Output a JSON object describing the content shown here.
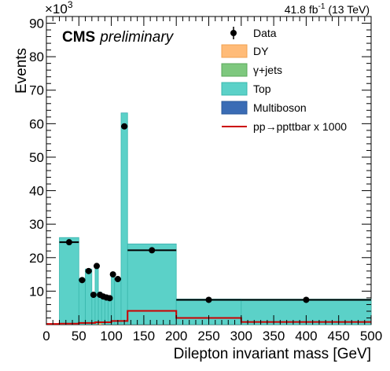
{
  "chart_data": {
    "type": "bar",
    "stacked": true,
    "xlabel": "Dilepton invariant mass [GeV]",
    "ylabel": "Events",
    "y_exponent_label": "×10",
    "y_exponent_power": "3",
    "lumi_value": "41.8 fb",
    "lumi_power": "-1",
    "lumi_energy": " (13 TeV)",
    "cms_label": "CMS",
    "preliminary_label": "preliminary",
    "xlim": [
      0,
      500
    ],
    "ylim": [
      0,
      92
    ],
    "x_ticks": [
      "0",
      "50",
      "100",
      "150",
      "200",
      "250",
      "300",
      "350",
      "400",
      "450",
      "500"
    ],
    "y_ticks": [
      "10",
      "20",
      "30",
      "40",
      "50",
      "60",
      "70",
      "80",
      "90"
    ],
    "bin_edges": [
      20,
      50,
      60,
      70,
      75,
      80,
      85,
      90,
      95,
      100,
      105,
      115,
      125,
      200,
      300,
      500
    ],
    "series": [
      {
        "name": "DY",
        "color": "#ffbb78",
        "values": [
          0.05,
          0.05,
          0.05,
          0.05,
          0.1,
          0.3,
          0.1,
          0.05,
          0.05,
          0.05,
          0.05,
          0.05,
          0.05,
          0.02,
          0.01
        ]
      },
      {
        "name": "γ+jets",
        "color": "#7ec87e",
        "values": [
          0.05,
          0.05,
          0.05,
          0.05,
          0.1,
          0.3,
          0.1,
          0.05,
          0.05,
          0.05,
          0.05,
          0.05,
          0.05,
          0.02,
          0.01
        ]
      },
      {
        "name": "Top",
        "color": "#5bd1c8",
        "values": [
          25.9,
          13.7,
          16.5,
          9.0,
          17.8,
          9.1,
          8.6,
          8.2,
          8.0,
          15.2,
          13.8,
          63.1,
          24.0,
          7.6,
          7.6
        ]
      },
      {
        "name": "Multiboson",
        "color": "#3a6cb5",
        "values": [
          0.02,
          0.02,
          0.02,
          0.02,
          0.02,
          0.02,
          0.02,
          0.02,
          0.02,
          0.02,
          0.02,
          0.05,
          0.03,
          0.01,
          0.01
        ]
      }
    ],
    "data_points": {
      "name": "Data",
      "x": [
        35,
        55,
        65,
        72.5,
        77.5,
        82.5,
        87.5,
        92.5,
        97.5,
        102.5,
        110,
        120,
        162.5,
        250,
        400
      ],
      "y": [
        24.6,
        13.3,
        16.0,
        8.9,
        17.5,
        8.9,
        8.4,
        8.1,
        7.9,
        15.0,
        13.6,
        59.2,
        22.2,
        7.4,
        7.4
      ],
      "xerr": [
        15,
        5,
        5,
        2.5,
        2.5,
        2.5,
        2.5,
        2.5,
        2.5,
        2.5,
        5,
        5,
        37.5,
        50,
        100
      ]
    },
    "signal": {
      "name": "pp→ppttbar x 1000",
      "color": "#cc0000",
      "bin_edges": [
        0,
        20,
        50,
        75,
        100,
        125,
        150,
        200,
        300,
        500
      ],
      "values": [
        0.2,
        0.3,
        0.5,
        0.7,
        1.1,
        4.1,
        4.1,
        2.0,
        0.8
      ]
    },
    "legend_position": "top-right"
  }
}
